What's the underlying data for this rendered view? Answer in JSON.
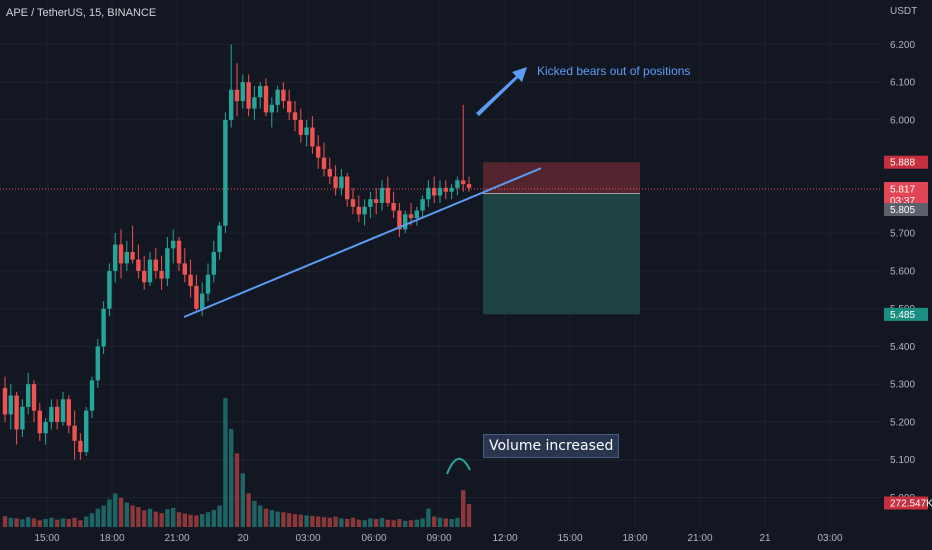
{
  "symbol_label": "APE / TetherUS, 15, BINANCE",
  "currency_label": "USDT",
  "colors": {
    "background": "#131722",
    "up": "#26a69a",
    "down": "#ef5350",
    "trendline": "#5b9cf6",
    "stop_zone": "#6b2a33",
    "target_zone": "#1f4a47"
  },
  "annotations": {
    "kicked_bears": "Kicked bears out of positions",
    "volume_increased": "Volume increased"
  },
  "price_tags": {
    "stop": "5.888",
    "current": "5.817",
    "countdown": "03:37",
    "entry": "5.805",
    "target": "5.485",
    "volume": "272.547K"
  },
  "chart_data": {
    "type": "candlestick",
    "ylim": [
      4.98,
      6.27
    ],
    "yticks": [
      "6.200",
      "6.100",
      "6.000",
      "5.700",
      "5.600",
      "5.500",
      "5.400",
      "5.300",
      "5.200",
      "5.100",
      "5.000"
    ],
    "xticks": [
      "15:00",
      "18:00",
      "21:00",
      "20",
      "03:00",
      "06:00",
      "09:00",
      "12:00",
      "15:00",
      "18:00",
      "21:00",
      "21",
      "03:00"
    ],
    "candles": [
      [
        5.29,
        5.32,
        5.2,
        5.22
      ],
      [
        5.22,
        5.3,
        5.18,
        5.27
      ],
      [
        5.27,
        5.28,
        5.14,
        5.18
      ],
      [
        5.18,
        5.26,
        5.16,
        5.24
      ],
      [
        5.24,
        5.33,
        5.22,
        5.3
      ],
      [
        5.3,
        5.31,
        5.2,
        5.23
      ],
      [
        5.23,
        5.25,
        5.15,
        5.17
      ],
      [
        5.17,
        5.21,
        5.14,
        5.2
      ],
      [
        5.2,
        5.26,
        5.18,
        5.24
      ],
      [
        5.24,
        5.26,
        5.18,
        5.2
      ],
      [
        5.2,
        5.28,
        5.19,
        5.26
      ],
      [
        5.26,
        5.27,
        5.17,
        5.19
      ],
      [
        5.19,
        5.23,
        5.1,
        5.15
      ],
      [
        5.15,
        5.17,
        5.1,
        5.12
      ],
      [
        5.12,
        5.24,
        5.11,
        5.23
      ],
      [
        5.23,
        5.32,
        5.21,
        5.31
      ],
      [
        5.31,
        5.42,
        5.29,
        5.4
      ],
      [
        5.4,
        5.52,
        5.38,
        5.5
      ],
      [
        5.5,
        5.62,
        5.48,
        5.6
      ],
      [
        5.6,
        5.7,
        5.57,
        5.67
      ],
      [
        5.67,
        5.71,
        5.58,
        5.62
      ],
      [
        5.62,
        5.68,
        5.6,
        5.65
      ],
      [
        5.65,
        5.72,
        5.62,
        5.63
      ],
      [
        5.63,
        5.67,
        5.58,
        5.6
      ],
      [
        5.6,
        5.64,
        5.55,
        5.57
      ],
      [
        5.57,
        5.65,
        5.56,
        5.63
      ],
      [
        5.63,
        5.66,
        5.58,
        5.6
      ],
      [
        5.6,
        5.64,
        5.55,
        5.58
      ],
      [
        5.58,
        5.69,
        5.56,
        5.66
      ],
      [
        5.66,
        5.71,
        5.62,
        5.68
      ],
      [
        5.68,
        5.69,
        5.6,
        5.62
      ],
      [
        5.62,
        5.66,
        5.57,
        5.59
      ],
      [
        5.59,
        5.63,
        5.53,
        5.56
      ],
      [
        5.56,
        5.59,
        5.49,
        5.5
      ],
      [
        5.5,
        5.57,
        5.48,
        5.54
      ],
      [
        5.54,
        5.62,
        5.52,
        5.59
      ],
      [
        5.59,
        5.68,
        5.57,
        5.65
      ],
      [
        5.65,
        5.73,
        5.63,
        5.72
      ],
      [
        5.72,
        6.02,
        5.7,
        6.0
      ],
      [
        6.0,
        6.2,
        5.98,
        6.08
      ],
      [
        6.08,
        6.15,
        6.01,
        6.05
      ],
      [
        6.05,
        6.12,
        6.03,
        6.1
      ],
      [
        6.1,
        6.12,
        6.01,
        6.03
      ],
      [
        6.03,
        6.09,
        6.0,
        6.06
      ],
      [
        6.06,
        6.1,
        6.03,
        6.09
      ],
      [
        6.09,
        6.11,
        6.01,
        6.02
      ],
      [
        6.02,
        6.06,
        5.98,
        6.04
      ],
      [
        6.04,
        6.09,
        6.02,
        6.08
      ],
      [
        6.08,
        6.1,
        6.03,
        6.05
      ],
      [
        6.05,
        6.08,
        6.0,
        6.02
      ],
      [
        6.02,
        6.05,
        5.97,
        6.0
      ],
      [
        6.0,
        6.03,
        5.94,
        5.96
      ],
      [
        5.96,
        6.0,
        5.93,
        5.98
      ],
      [
        5.98,
        6.01,
        5.91,
        5.93
      ],
      [
        5.93,
        5.96,
        5.87,
        5.9
      ],
      [
        5.9,
        5.94,
        5.85,
        5.87
      ],
      [
        5.87,
        5.9,
        5.83,
        5.85
      ],
      [
        5.85,
        5.88,
        5.8,
        5.82
      ],
      [
        5.82,
        5.87,
        5.8,
        5.85
      ],
      [
        5.85,
        5.86,
        5.77,
        5.79
      ],
      [
        5.79,
        5.82,
        5.75,
        5.77
      ],
      [
        5.77,
        5.8,
        5.73,
        5.75
      ],
      [
        5.75,
        5.79,
        5.72,
        5.77
      ],
      [
        5.77,
        5.81,
        5.74,
        5.79
      ],
      [
        5.79,
        5.82,
        5.75,
        5.78
      ],
      [
        5.78,
        5.84,
        5.76,
        5.82
      ],
      [
        5.82,
        5.85,
        5.77,
        5.78
      ],
      [
        5.78,
        5.81,
        5.74,
        5.76
      ],
      [
        5.76,
        5.78,
        5.69,
        5.71
      ],
      [
        5.71,
        5.76,
        5.7,
        5.75
      ],
      [
        5.75,
        5.78,
        5.72,
        5.74
      ],
      [
        5.74,
        5.77,
        5.72,
        5.76
      ],
      [
        5.76,
        5.8,
        5.74,
        5.79
      ],
      [
        5.79,
        5.84,
        5.77,
        5.82
      ],
      [
        5.82,
        5.85,
        5.78,
        5.8
      ],
      [
        5.8,
        5.84,
        5.78,
        5.82
      ],
      [
        5.82,
        5.84,
        5.79,
        5.81
      ],
      [
        5.81,
        5.83,
        5.79,
        5.82
      ],
      [
        5.82,
        5.85,
        5.8,
        5.84
      ],
      [
        5.84,
        6.04,
        5.81,
        5.83
      ],
      [
        5.83,
        5.85,
        5.81,
        5.82
      ]
    ],
    "volume_ylim": [
      0,
      440
    ],
    "volumes": [
      35,
      30,
      28,
      25,
      32,
      28,
      22,
      26,
      30,
      24,
      28,
      26,
      30,
      22,
      34,
      45,
      60,
      70,
      90,
      110,
      95,
      80,
      70,
      65,
      55,
      60,
      50,
      45,
      58,
      62,
      48,
      44,
      40,
      38,
      42,
      48,
      55,
      70,
      420,
      320,
      240,
      175,
      110,
      85,
      70,
      60,
      55,
      50,
      48,
      45,
      42,
      40,
      38,
      36,
      34,
      32,
      30,
      34,
      28,
      26,
      30,
      24,
      22,
      28,
      26,
      30,
      24,
      22,
      26,
      20,
      22,
      24,
      28,
      60,
      34,
      30,
      28,
      26,
      30,
      120,
      75
    ],
    "trendline": {
      "from": [
        5.48,
        33
      ],
      "to": [
        5.87,
        88
      ]
    },
    "position": {
      "stop": 5.888,
      "entry": 5.805,
      "target": 5.485,
      "start_index": 80,
      "end_index": 103
    }
  }
}
